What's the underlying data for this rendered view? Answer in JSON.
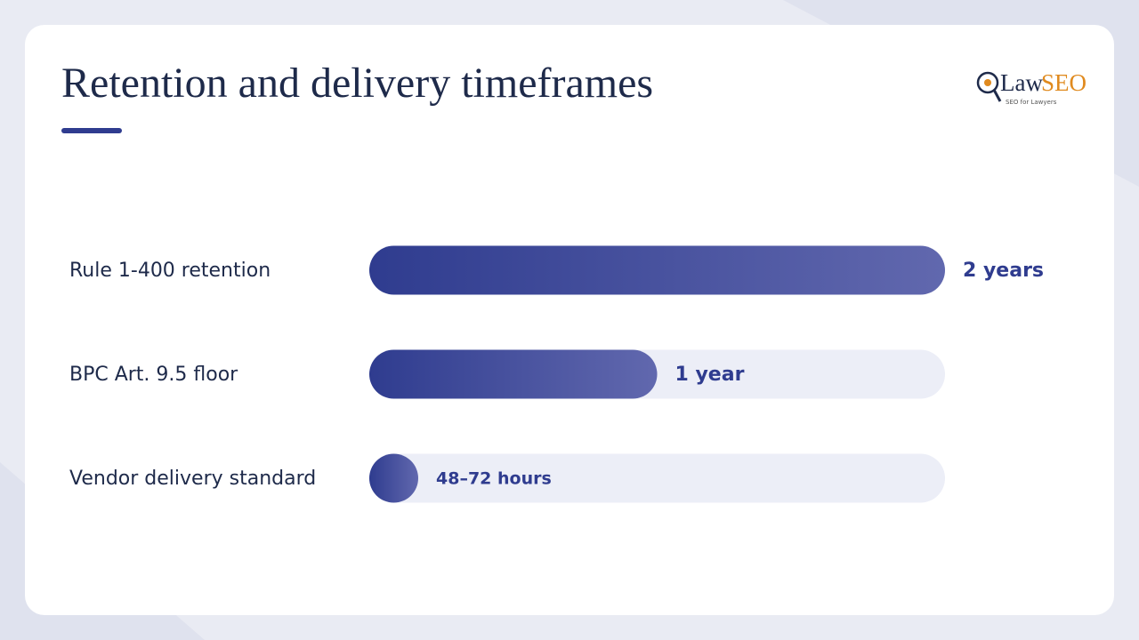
{
  "chart_data": {
    "type": "bar",
    "title": "Retention and delivery timeframes",
    "categories": [
      "Rule 1-400 retention",
      "BPC Art. 9.5 floor",
      "Vendor delivery standard"
    ],
    "values": [
      17520,
      8760,
      72
    ],
    "value_labels": [
      "2 years",
      "1 year",
      "48–72 hours"
    ],
    "xlim": [
      0,
      17520
    ],
    "color": "#2f3c8f"
  },
  "logo": {
    "left": "Law",
    "right": "SEO",
    "tagline": "SEO for Lawyers"
  }
}
